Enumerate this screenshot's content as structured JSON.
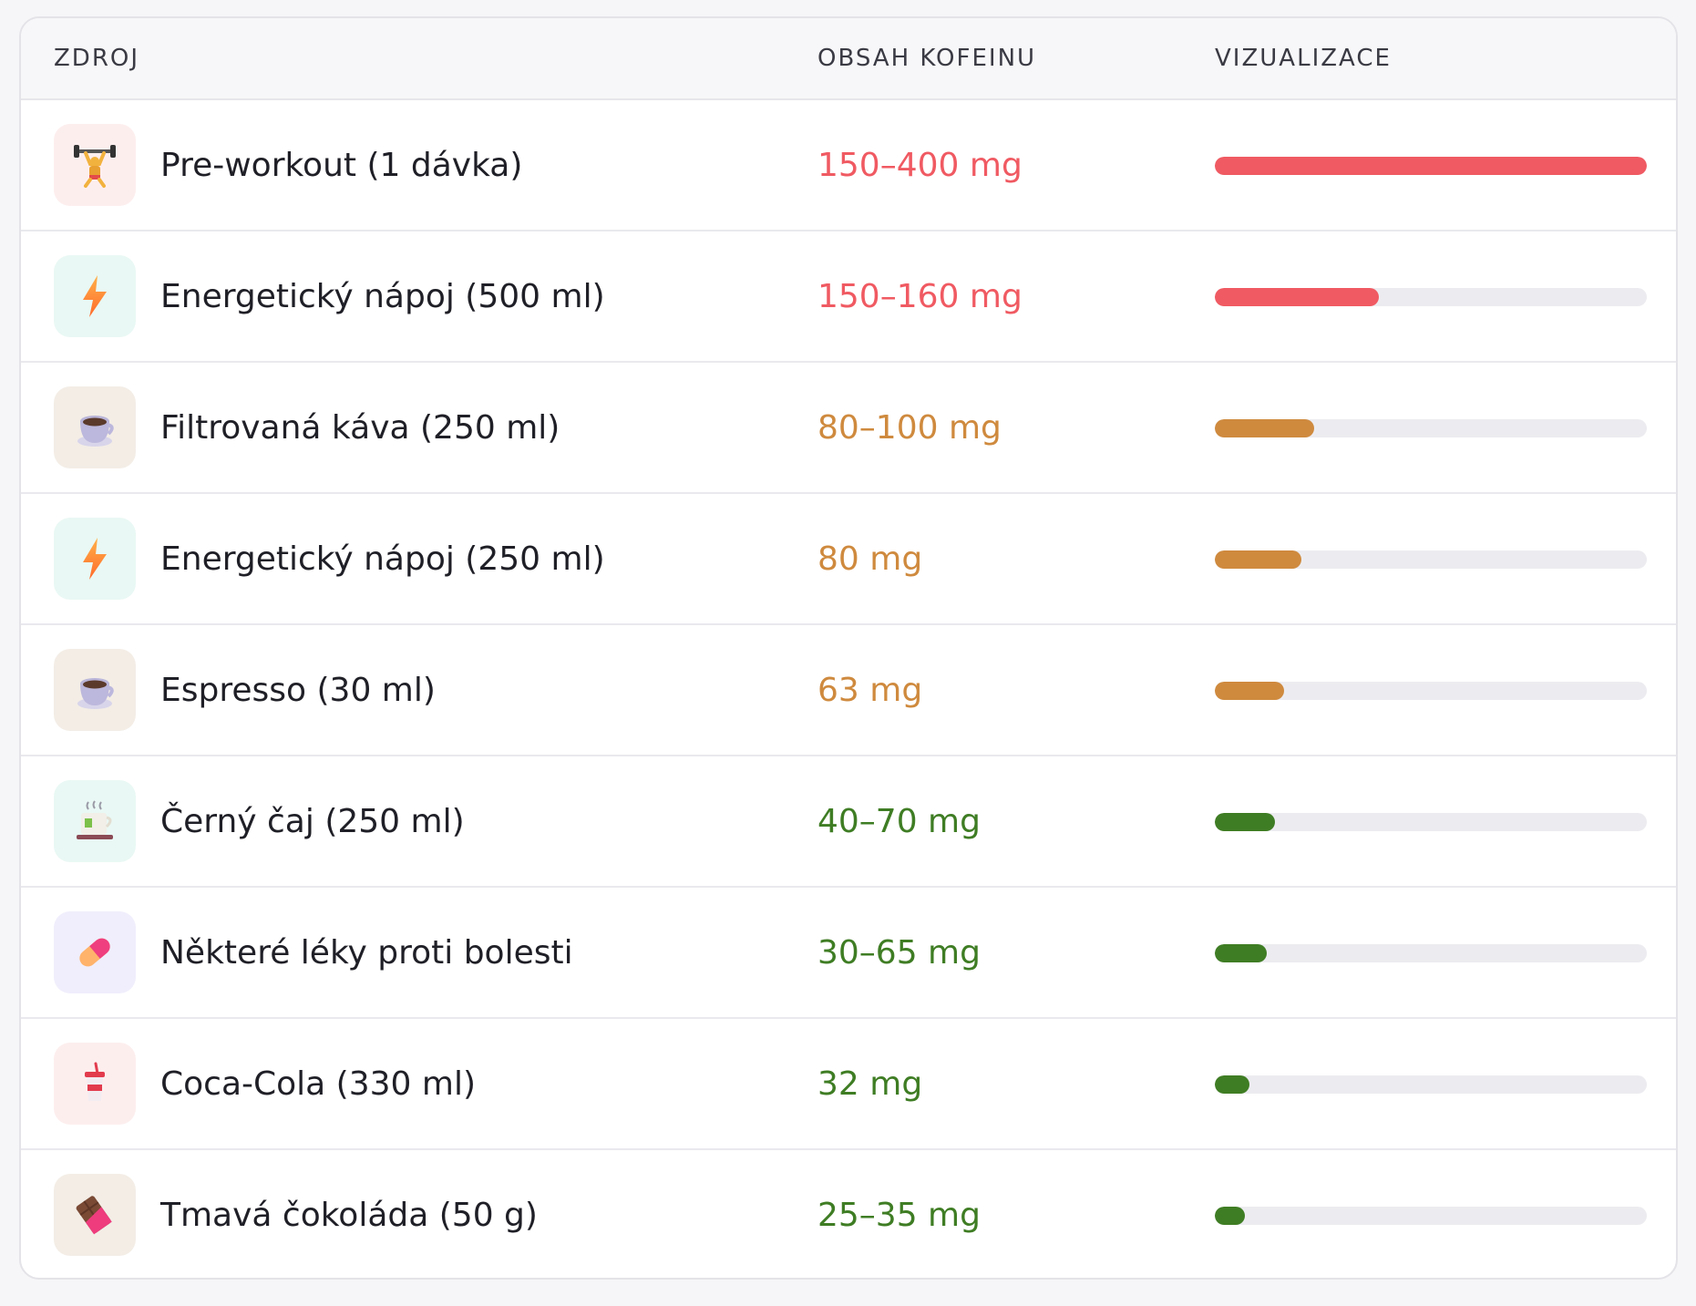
{
  "table": {
    "headers": {
      "source": "ZDROJ",
      "content": "OBSAH KOFEINU",
      "viz": "VIZUALIZACE"
    },
    "rows": [
      {
        "name": "Pre-workout (1 dávka)",
        "amount": "150–400 mg",
        "level": 1.0,
        "color": "#f05a62",
        "icon": "weightlifter-icon",
        "icon_bg": "#fdeeee"
      },
      {
        "name": "Energetický nápoj (500 ml)",
        "amount": "150–160 mg",
        "level": 0.38,
        "color": "#f05a62",
        "icon": "lightning-icon",
        "icon_bg": "#e9f8f4"
      },
      {
        "name": "Filtrovaná káva (250 ml)",
        "amount": "80–100 mg",
        "level": 0.23,
        "color": "#cf8a3e",
        "icon": "coffee-cup-icon",
        "icon_bg": "#f3ede6"
      },
      {
        "name": "Energetický nápoj (250 ml)",
        "amount": "80 mg",
        "level": 0.2,
        "color": "#cf8a3e",
        "icon": "lightning-icon",
        "icon_bg": "#e9f8f4"
      },
      {
        "name": "Espresso (30 ml)",
        "amount": "63 mg",
        "level": 0.16,
        "color": "#cf8a3e",
        "icon": "coffee-cup-icon",
        "icon_bg": "#f3ede6"
      },
      {
        "name": "Černý čaj (250 ml)",
        "amount": "40–70 mg",
        "level": 0.14,
        "color": "#3f7d24",
        "icon": "tea-cup-icon",
        "icon_bg": "#e9f8f4"
      },
      {
        "name": "Některé léky proti bolesti",
        "amount": "30–65 mg",
        "level": 0.12,
        "color": "#3f7d24",
        "icon": "pill-icon",
        "icon_bg": "#f0eefc"
      },
      {
        "name": "Coca-Cola (330 ml)",
        "amount": "32 mg",
        "level": 0.08,
        "color": "#3f7d24",
        "icon": "soda-cup-icon",
        "icon_bg": "#fdeeee"
      },
      {
        "name": "Tmavá čokoláda (50 g)",
        "amount": "25–35 mg",
        "level": 0.07,
        "color": "#3f7d24",
        "icon": "chocolate-bar-icon",
        "icon_bg": "#f3ede6"
      }
    ]
  }
}
